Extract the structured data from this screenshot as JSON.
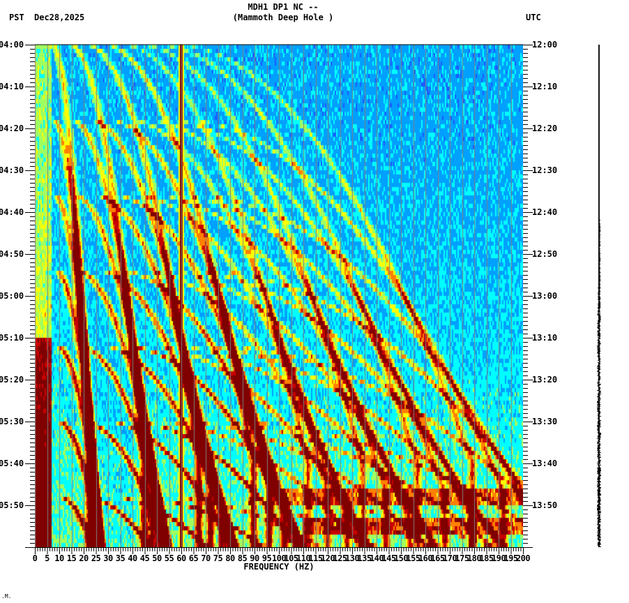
{
  "header": {
    "title_line1": "MDH1 DP1 NC --",
    "title_line2": "(Mammoth Deep Hole )",
    "left_timezone": "PST",
    "date": "Dec28,2025",
    "right_timezone": "UTC"
  },
  "footer": {
    "mark": ".M."
  },
  "chart_data": {
    "type": "heatmap",
    "title": "MDH1 DP1 NC -- (Mammoth Deep Hole )",
    "subtitle": "PST Dec28,2025 / UTC",
    "xlabel": "FREQUENCY (HZ)",
    "ylabel_left": "PST",
    "ylabel_right": "UTC",
    "xlim": [
      0,
      200
    ],
    "x_ticks": [
      "0",
      "5",
      "10",
      "15",
      "20",
      "25",
      "30",
      "35",
      "40",
      "45",
      "50",
      "55",
      "60",
      "65",
      "70",
      "75",
      "80",
      "85",
      "90",
      "95",
      "100",
      "105",
      "110",
      "115",
      "120",
      "125",
      "130",
      "135",
      "140",
      "145",
      "150",
      "155",
      "160",
      "165",
      "170",
      "175",
      "180",
      "185",
      "190",
      "195",
      "200"
    ],
    "x_minor_tick_step_hz": 1,
    "y_ticks_left": [
      "04:00",
      "04:10",
      "04:20",
      "04:30",
      "04:40",
      "04:50",
      "05:00",
      "05:10",
      "05:20",
      "05:30",
      "05:40",
      "05:50"
    ],
    "y_ticks_right": [
      "12:00",
      "12:10",
      "12:20",
      "12:30",
      "12:40",
      "12:50",
      "13:00",
      "13:10",
      "13:20",
      "13:30",
      "13:40",
      "13:50"
    ],
    "y_minutes_total": 120,
    "y_minor_tick_step_min": 1,
    "grid": {
      "vertical_every_hz": 5,
      "color": "#808080"
    },
    "colormap": [
      "#0000c8",
      "#1e5aff",
      "#00a0ff",
      "#00ffff",
      "#a0ff60",
      "#ffff00",
      "#ff8000",
      "#c80000",
      "#800000"
    ],
    "features": {
      "constant_line_hz": 60,
      "low_freq_energy_hz": [
        0,
        5
      ],
      "gliding_harmonics": {
        "description": "curved spectral lines rising in frequency over time",
        "fundamental_start_hz": 10,
        "fundamental_end_hz": 32,
        "start_min": 0,
        "end_min": 120,
        "series_start_minutes": [
          0,
          18,
          36,
          54,
          72,
          90,
          108
        ]
      },
      "late_broadband_bands": [
        {
          "minute": 108,
          "from_hz": 95,
          "to_hz": 200,
          "level": 5
        },
        {
          "minute": 115,
          "from_hz": 110,
          "to_hz": 200,
          "level": 5
        }
      ]
    }
  }
}
